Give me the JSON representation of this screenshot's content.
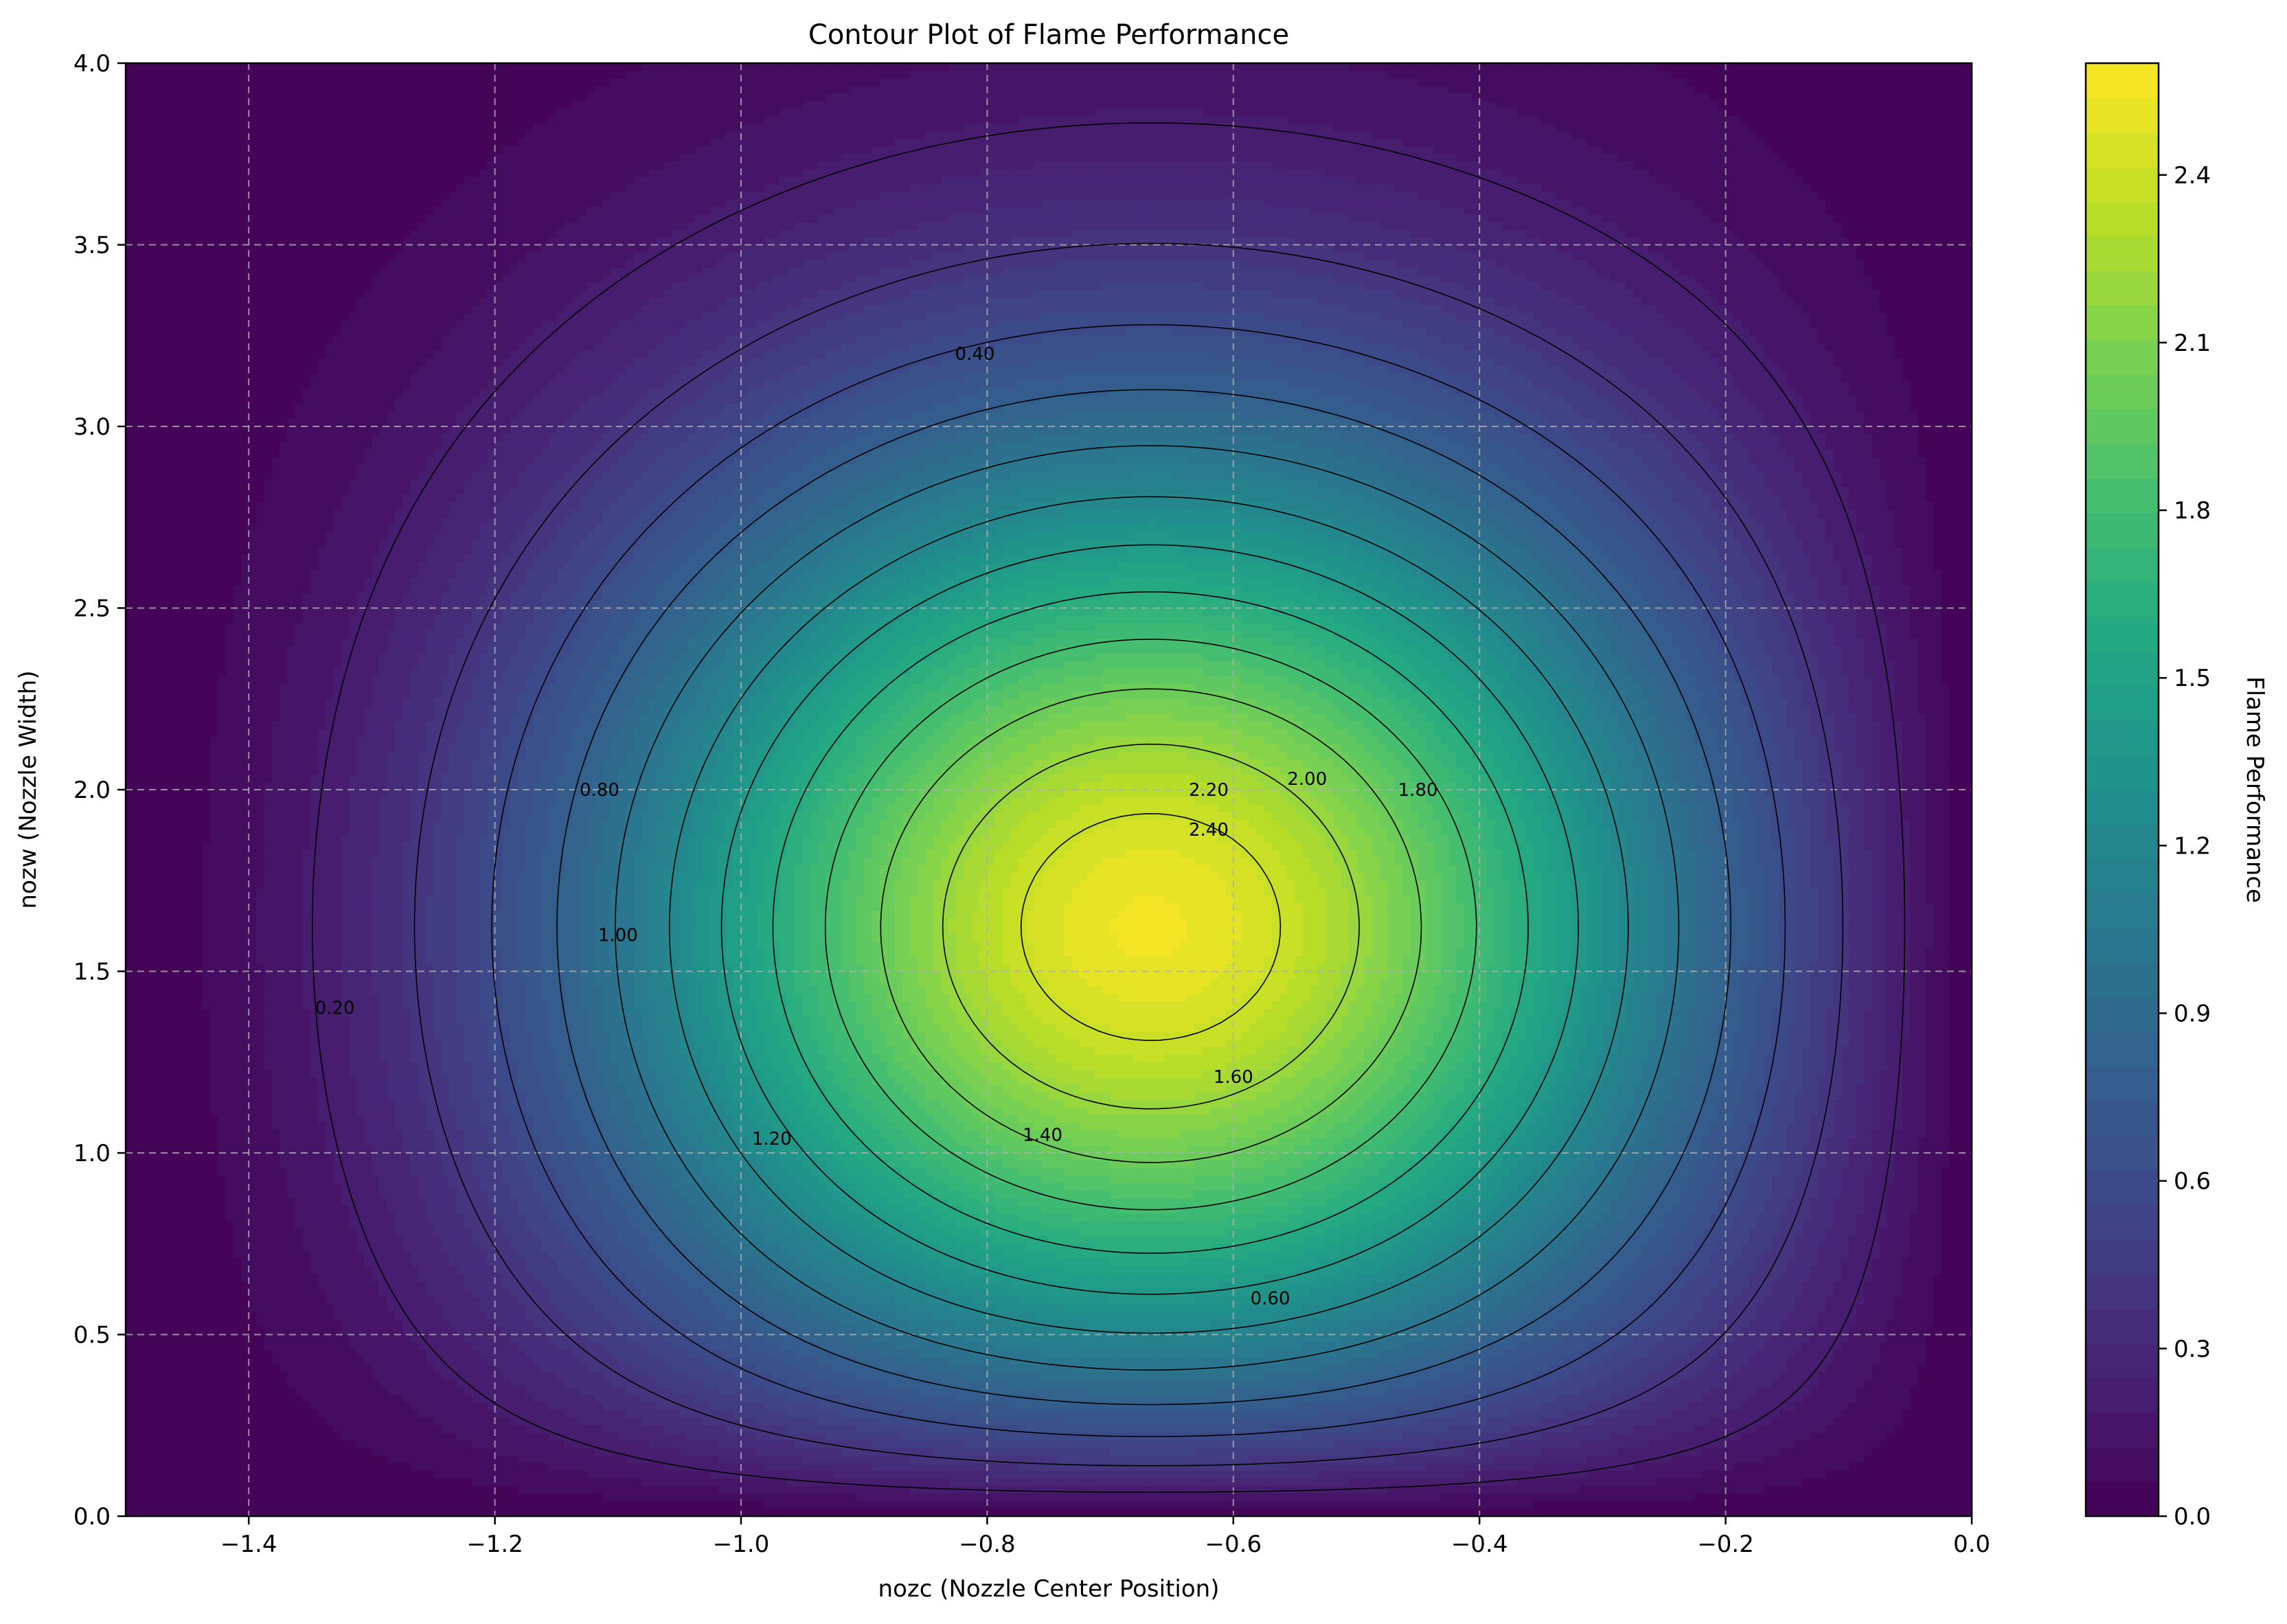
{
  "chart_data": {
    "type": "contour",
    "title": "Contour Plot of Flame Performance",
    "xlabel": "nozc (Nozzle Center Position)",
    "ylabel": "nozw (Nozzle Width)",
    "colorbar_label": "Flame Performance",
    "xlim": [
      -1.5,
      0.0
    ],
    "ylim": [
      0.0,
      4.0
    ],
    "x_ticks": [
      -1.4,
      -1.2,
      -1.0,
      -0.8,
      -0.6,
      -0.4,
      -0.2,
      0.0
    ],
    "x_tick_labels": [
      "−1.4",
      "−1.2",
      "−1.0",
      "−0.8",
      "−0.6",
      "−0.4",
      "−0.2",
      "0.0"
    ],
    "y_ticks": [
      0.0,
      0.5,
      1.0,
      1.5,
      2.0,
      2.5,
      3.0,
      3.5,
      4.0
    ],
    "y_tick_labels": [
      "0.0",
      "0.5",
      "1.0",
      "1.5",
      "2.0",
      "2.5",
      "3.0",
      "3.5",
      "4.0"
    ],
    "colorbar_range": [
      0.0,
      2.6
    ],
    "colorbar_ticks": [
      0.0,
      0.3,
      0.6,
      0.9,
      1.2,
      1.5,
      1.8,
      2.1,
      2.4
    ],
    "colorbar_tick_labels": [
      "0.0",
      "0.3",
      "0.6",
      "0.9",
      "1.2",
      "1.5",
      "1.8",
      "2.1",
      "2.4"
    ],
    "colormap": "viridis",
    "grid": true,
    "peak": {
      "x": -0.67,
      "y": 1.62,
      "value": 2.58
    },
    "contour_levels": [
      0.2,
      0.4,
      0.6,
      0.8,
      1.0,
      1.2,
      1.4,
      1.6,
      1.8,
      2.0,
      2.2,
      2.4
    ],
    "contour_labels": [
      {
        "text": "0.20",
        "level": 0.2,
        "x": -1.33,
        "y": 1.4
      },
      {
        "text": "0.40",
        "level": 0.4,
        "x": -0.81,
        "y": 3.2
      },
      {
        "text": "0.60",
        "level": 0.6,
        "x": -0.57,
        "y": 0.6
      },
      {
        "text": "0.80",
        "level": 0.8,
        "x": -1.115,
        "y": 2.0
      },
      {
        "text": "1.00",
        "level": 1.0,
        "x": -1.1,
        "y": 1.6
      },
      {
        "text": "1.20",
        "level": 1.2,
        "x": -0.975,
        "y": 1.04
      },
      {
        "text": "1.40",
        "level": 1.4,
        "x": -0.755,
        "y": 1.05
      },
      {
        "text": "1.60",
        "level": 1.6,
        "x": -0.6,
        "y": 1.21
      },
      {
        "text": "1.80",
        "level": 1.8,
        "x": -0.45,
        "y": 2.0
      },
      {
        "text": "2.00",
        "level": 2.0,
        "x": -0.54,
        "y": 2.03
      },
      {
        "text": "2.20",
        "level": 2.2,
        "x": -0.62,
        "y": 2.0
      },
      {
        "text": "2.40",
        "level": 2.4,
        "x": -0.62,
        "y": 1.89
      }
    ]
  }
}
